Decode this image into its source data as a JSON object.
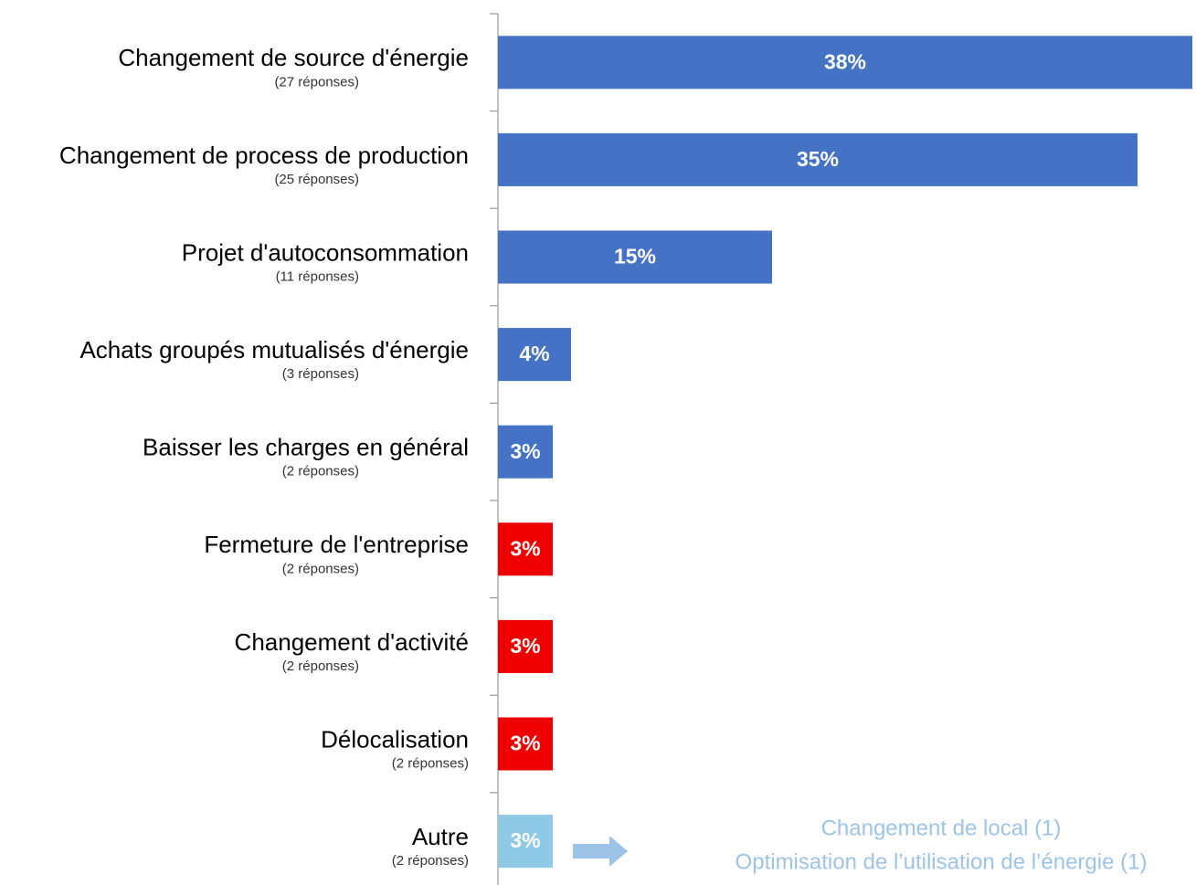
{
  "chart_data": {
    "type": "bar",
    "orientation": "horizontal",
    "categories": [
      "Changement de source d'énergie",
      "Changement de process de production",
      "Projet d'autoconsommation",
      "Achats groupés mutualisés d'énergie",
      "Baisser les charges en général",
      "Fermeture de l'entreprise",
      "Changement d'activité",
      "Délocalisation",
      "Autre"
    ],
    "category_notes": [
      "(27 réponses)",
      "(25 réponses)",
      "(11 réponses)",
      "(3  réponses)",
      "(2 réponses)",
      "(2 réponses)",
      "(2 réponses)",
      "(2 réponses)",
      "(2 réponses)"
    ],
    "values": [
      38,
      35,
      15,
      4,
      3,
      3,
      3,
      3,
      3
    ],
    "value_labels": [
      "38%",
      "35%",
      "15%",
      "4%",
      "3%",
      "3%",
      "3%",
      "3%",
      "3%"
    ],
    "colors": [
      "#4472c4",
      "#4472c4",
      "#4472c4",
      "#4472c4",
      "#4472c4",
      "#ee0000",
      "#ee0000",
      "#ee0000",
      "#8ec9e6"
    ],
    "annotations": [
      "Changement de local (1)",
      "Optimisation de l’utilisation de l’énergie (1)"
    ]
  }
}
